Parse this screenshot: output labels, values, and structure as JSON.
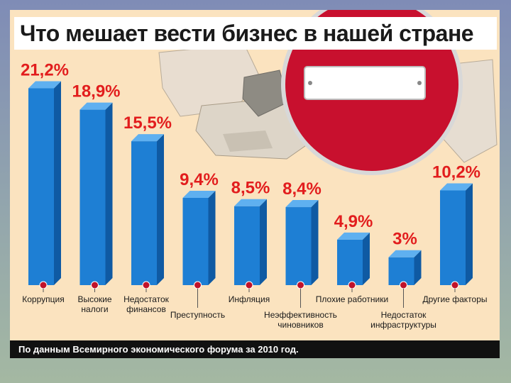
{
  "title": "Что мешает вести бизнес в нашей стране",
  "footer": "По данным Всемирного экономического форума за 2010 год.",
  "colors": {
    "bar_front": "#1e7fd4",
    "bar_side": "#0f5aa3",
    "bar_top": "#5fb0f0",
    "value_text": "#e21d1d",
    "sign_red": "#c8102e"
  },
  "chart_data": {
    "type": "bar",
    "title": "Что мешает вести бизнес в нашей стране",
    "ylim": [
      0,
      22
    ],
    "categories": [
      "Коррупция",
      "Высокие налоги",
      "Недостаток финансов",
      "Преступность",
      "Инфляция",
      "Неэффективность чиновников",
      "Плохие работники",
      "Недостаток инфраструктуры",
      "Другие факторы"
    ],
    "category_lines": [
      [
        "Коррупция"
      ],
      [
        "Высокие",
        "налоги"
      ],
      [
        "Недостаток",
        "финансов"
      ],
      [
        "Преступность"
      ],
      [
        "Инфляция"
      ],
      [
        "Неэффективность",
        "чиновников"
      ],
      [
        "Плохие работники"
      ],
      [
        "Недостаток",
        "инфраструктуры"
      ],
      [
        "Другие факторы"
      ]
    ],
    "values": [
      21.2,
      18.9,
      15.5,
      9.4,
      8.5,
      8.4,
      4.9,
      3,
      10.2
    ],
    "value_labels": [
      "21,2%",
      "18,9%",
      "15,5%",
      "9,4%",
      "8,5%",
      "8,4%",
      "4,9%",
      "3%",
      "10,2%"
    ]
  }
}
